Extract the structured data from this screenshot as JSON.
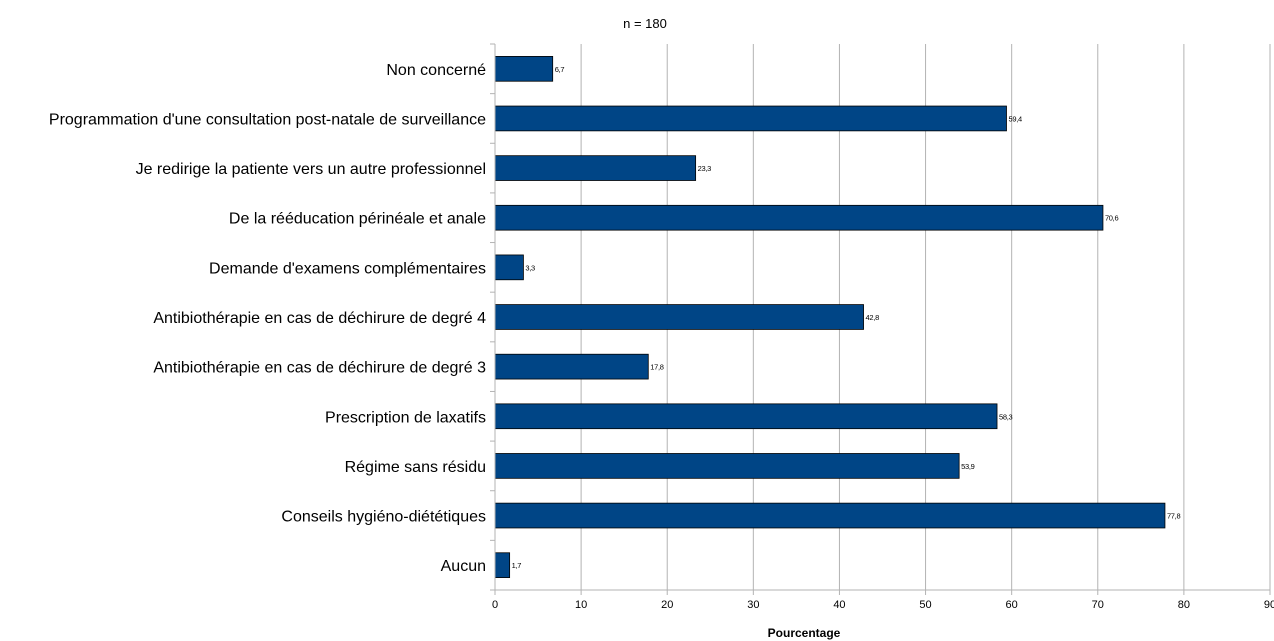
{
  "chart_data": {
    "type": "bar",
    "orientation": "horizontal",
    "title": "n = 180",
    "xlabel": "Pourcentage",
    "ylabel": "",
    "xlim": [
      0,
      90
    ],
    "x_ticks": [
      0,
      10,
      20,
      30,
      40,
      50,
      60,
      70,
      80,
      90
    ],
    "grid": true,
    "legend": "none",
    "bar_color": "#004586",
    "categories": [
      "Non concerné",
      "Programmation d'une consultation post-natale de surveillance",
      "Je redirige la patiente vers un autre professionnel",
      "De la rééducation périnéale et anale",
      "Demande d'examens complémentaires",
      "Antibiothérapie en cas de déchirure de degré 4",
      "Antibiothérapie en cas de déchirure de degré 3",
      "Prescription de laxatifs",
      "Régime sans résidu",
      "Conseils hygiéno-diététiques",
      "Aucun"
    ],
    "values": [
      6.7,
      59.4,
      23.3,
      70.6,
      3.3,
      42.8,
      17.8,
      58.3,
      53.9,
      77.8,
      1.7
    ],
    "value_labels": [
      "6,7",
      "59,4",
      "23,3",
      "70,6",
      "3,3",
      "42,8",
      "17,8",
      "58,3",
      "53,9",
      "77,8",
      "1,7"
    ]
  }
}
